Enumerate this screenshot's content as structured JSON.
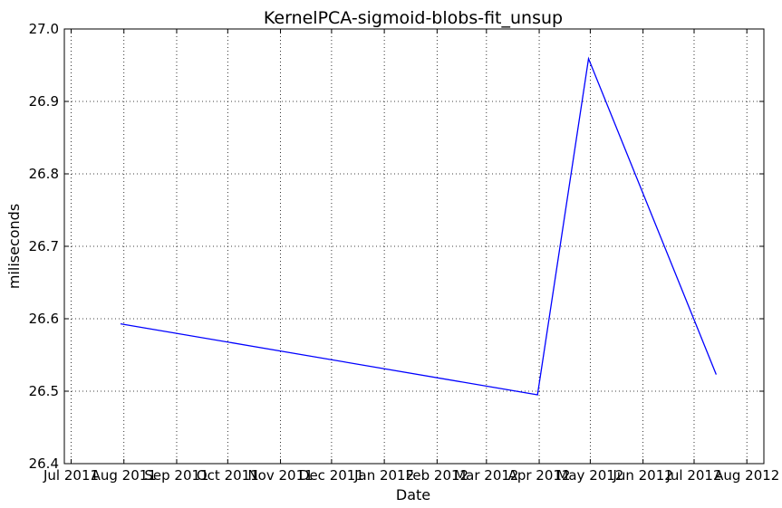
{
  "chart_data": {
    "type": "line",
    "title": "KernelPCA-sigmoid-blobs-fit_unsup",
    "xlabel": "Date",
    "ylabel": "miliseconds",
    "x_ticks": [
      "Jul 2011",
      "Aug 2011",
      "Sep 2011",
      "Oct 2011",
      "Nov 2011",
      "Dec 2011",
      "Jan 2012",
      "Feb 2012",
      "Mar 2012",
      "Apr 2012",
      "May 2012",
      "Jun 2012",
      "Jul 2012",
      "Aug 2012"
    ],
    "y_ticks": [
      "26.4",
      "26.5",
      "26.6",
      "26.7",
      "26.8",
      "26.9",
      "27.0"
    ],
    "xlim": [
      "2011-06-27",
      "2012-08-11"
    ],
    "ylim": [
      26.4,
      27.0
    ],
    "grid": true,
    "series": [
      {
        "color": "#0000ff",
        "x": [
          "2011-07-30",
          "2012-03-31",
          "2012-04-30",
          "2012-07-14"
        ],
        "y": [
          26.593,
          26.495,
          26.959,
          26.523
        ]
      }
    ]
  }
}
